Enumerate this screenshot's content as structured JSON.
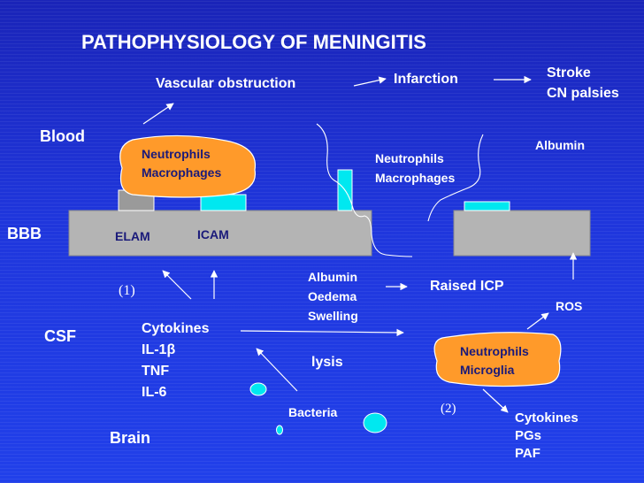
{
  "title": "PATHOPHYSIOLOGY OF MENINGITIS",
  "colors": {
    "background": "#1f36dc",
    "membrane": "#b4b4b4",
    "cyan": "#00e8f0",
    "cell": "#ff9a2a",
    "text": "#ffffff",
    "cell_text": "#1a1a7a"
  },
  "compartments": {
    "blood": "Blood",
    "bbb": "BBB",
    "csf": "CSF",
    "brain": "Brain"
  },
  "top_flow": {
    "vascular_obstruction": "Vascular obstruction",
    "infarction": "Infarction",
    "stroke": "Stroke",
    "cn_palsies": "CN palsies"
  },
  "blood_labels": {
    "albumin": "Albumin",
    "neutrophils": "Neutrophils",
    "macrophages": "Macrophages"
  },
  "blood_cell": {
    "line1": "Neutrophils",
    "line2": "Macrophages"
  },
  "membrane_labels": {
    "elam": "ELAM",
    "icam": "ICAM"
  },
  "csf_labels": {
    "marker_1": "(1)",
    "cytokines": [
      "Cytokines",
      "IL-1β",
      "TNF",
      "IL-6"
    ],
    "albumin_group": [
      "Albumin",
      "Oedema",
      "Swelling"
    ],
    "raised_icp": "Raised ICP",
    "ros": "ROS",
    "lysis": "lysis"
  },
  "brain_cell": {
    "line1": "Neutrophils",
    "line2": "Microglia"
  },
  "brain_labels": {
    "bacteria": "Bacteria",
    "marker_2": "(2)",
    "products": [
      "Cytokines",
      "PGs",
      "PAF"
    ]
  }
}
